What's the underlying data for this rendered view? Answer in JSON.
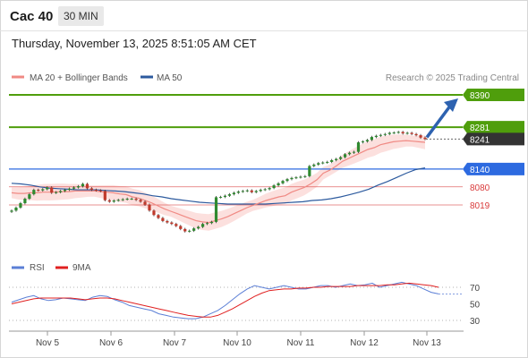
{
  "header": {
    "symbol": "Cac 40",
    "timeframe": "30 MIN",
    "datetime": "Thursday, November 13, 2025 8:51:05 AM CET"
  },
  "legend": {
    "ma20_label": "MA 20 + Bollinger Bands",
    "ma50_label": "MA 50",
    "credit": "Research © 2025 Trading Central",
    "rsi_label": "RSI",
    "rsi_ma_label": "9MA"
  },
  "colors": {
    "ma20": "#f08a84",
    "ma50": "#2c5a9e",
    "bollinger_fill": "#fbdad8",
    "resistance": "#4f9e0c",
    "last_price": "#333333",
    "pivot": "#2d6ae0",
    "support": "#d93a3a",
    "rsi": "#5b7fd6",
    "rsi_ma": "#e02020",
    "candle_up": "#2f8a2f",
    "candle_down": "#c0392b",
    "arrow": "#2d62b0"
  },
  "chart_data": {
    "type": "candlestick",
    "x_ticks": [
      "Nov 5",
      "Nov 6",
      "Nov 7",
      "Nov 10",
      "Nov 11",
      "Nov 12",
      "Nov 13"
    ],
    "levels": [
      {
        "value": 8390,
        "label": "8390",
        "kind": "resistance"
      },
      {
        "value": 8281,
        "label": "8281",
        "kind": "resistance"
      },
      {
        "value": 8241,
        "label": "8241",
        "kind": "last"
      },
      {
        "value": 8140,
        "label": "8140",
        "kind": "pivot"
      },
      {
        "value": 8080,
        "label": "8080",
        "kind": "support"
      },
      {
        "value": 8019,
        "label": "8019",
        "kind": "support"
      }
    ],
    "close": [
      8000,
      8010,
      8025,
      8040,
      8055,
      8070,
      8068,
      8072,
      8078,
      8060,
      8062,
      8066,
      8070,
      8074,
      8078,
      8082,
      8090,
      8075,
      8070,
      8068,
      8066,
      8035,
      8030,
      8034,
      8036,
      8038,
      8040,
      8040,
      8036,
      8030,
      8020,
      8000,
      7985,
      7975,
      7965,
      7960,
      7955,
      7948,
      7938,
      7930,
      7932,
      7940,
      7945,
      7955,
      7958,
      7962,
      8045,
      8046,
      8050,
      8055,
      8060,
      8064,
      8066,
      8068,
      8062,
      8066,
      8070,
      8072,
      8076,
      8085,
      8092,
      8100,
      8106,
      8110,
      8112,
      8114,
      8116,
      8150,
      8155,
      8160,
      8162,
      8164,
      8170,
      8174,
      8180,
      8190,
      8195,
      8198,
      8230,
      8233,
      8238,
      8248,
      8252,
      8255,
      8258,
      8262,
      8263,
      8265,
      8260,
      8262,
      8258,
      8254,
      8246,
      8241
    ],
    "ma20": [
      8060,
      8058,
      8058,
      8060,
      8060,
      8062,
      8062,
      8063,
      8064,
      8064,
      8066,
      8066,
      8066,
      8066,
      8064,
      8062,
      8060,
      8056,
      8054,
      8046,
      8042,
      8034,
      8026,
      8016,
      8006,
      7998,
      7990,
      7982,
      7974,
      7966,
      7962,
      7960,
      7966,
      7972,
      7980,
      7990,
      8000,
      8010,
      8018,
      8026,
      8034,
      8040,
      8046,
      8050,
      8062,
      8070,
      8078,
      8090,
      8104,
      8126,
      8136,
      8150,
      8166,
      8176,
      8186,
      8196,
      8206,
      8212,
      8222,
      8227,
      8232,
      8234,
      8236,
      8234,
      8232,
      8230
    ],
    "ma50": [
      8092,
      8090,
      8086,
      8080,
      8076,
      8074,
      8072,
      8070,
      8070,
      8070,
      8068,
      8066,
      8064,
      8060,
      8056,
      8050,
      8046,
      8040,
      8036,
      8032,
      8028,
      8026,
      8024,
      8022,
      8022,
      8022,
      8022,
      8022,
      8024,
      8026,
      8028,
      8030,
      8034,
      8036,
      8040,
      8046,
      8054,
      8062,
      8072,
      8086,
      8098,
      8112,
      8126,
      8138,
      8144
    ],
    "rsi": [
      52,
      55,
      58,
      60,
      56,
      54,
      55,
      57,
      56,
      55,
      54,
      58,
      60,
      59,
      55,
      52,
      48,
      46,
      44,
      42,
      38,
      36,
      34,
      33,
      32,
      32,
      34,
      38,
      42,
      48,
      55,
      62,
      68,
      72,
      70,
      68,
      70,
      72,
      70,
      68,
      68,
      70,
      72,
      72,
      70,
      72,
      74,
      72,
      73,
      75,
      70,
      72,
      74,
      76,
      74,
      72,
      68,
      64,
      62
    ],
    "rsi_ma": [
      50,
      52,
      54,
      56,
      57,
      57,
      57,
      57,
      57,
      56,
      55,
      56,
      57,
      57,
      56,
      54,
      52,
      50,
      48,
      46,
      44,
      42,
      40,
      38,
      36,
      35,
      34,
      34,
      36,
      40,
      44,
      49,
      54,
      59,
      63,
      66,
      67,
      68,
      68,
      69,
      69,
      70,
      70,
      71,
      71,
      71,
      71,
      72,
      72,
      72,
      72,
      73,
      73,
      74,
      75,
      74,
      73,
      72,
      70
    ],
    "rsi_ticks": [
      70,
      50,
      30
    ],
    "forecast_target": 8390
  }
}
